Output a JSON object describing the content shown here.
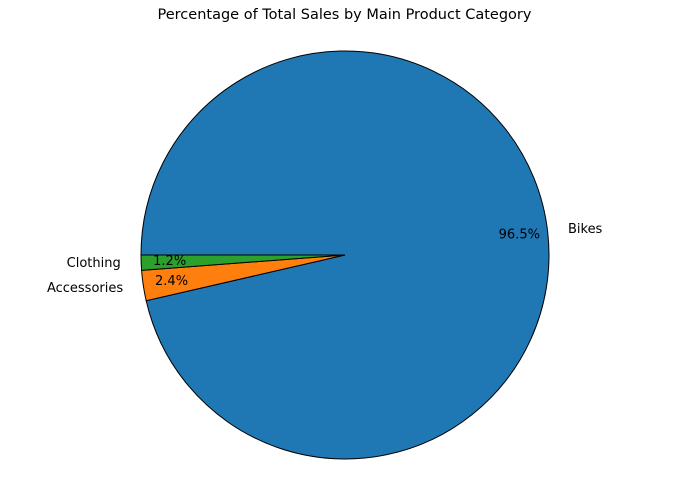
{
  "chart_data": {
    "type": "pie",
    "title": "Percentage of Total Sales by Main Product Category",
    "slices": [
      {
        "label": "Bikes",
        "value": 96.5,
        "pct_label": "96.5%",
        "color": "#1f77b4"
      },
      {
        "label": "Accessories",
        "value": 2.4,
        "pct_label": "2.4%",
        "color": "#ff7f0e"
      },
      {
        "label": "Clothing",
        "value": 1.2,
        "pct_label": "1.2%",
        "color": "#2ca02c"
      }
    ],
    "start_angle_deg": 180,
    "direction": "clockwise",
    "edge_color": "#000000"
  }
}
